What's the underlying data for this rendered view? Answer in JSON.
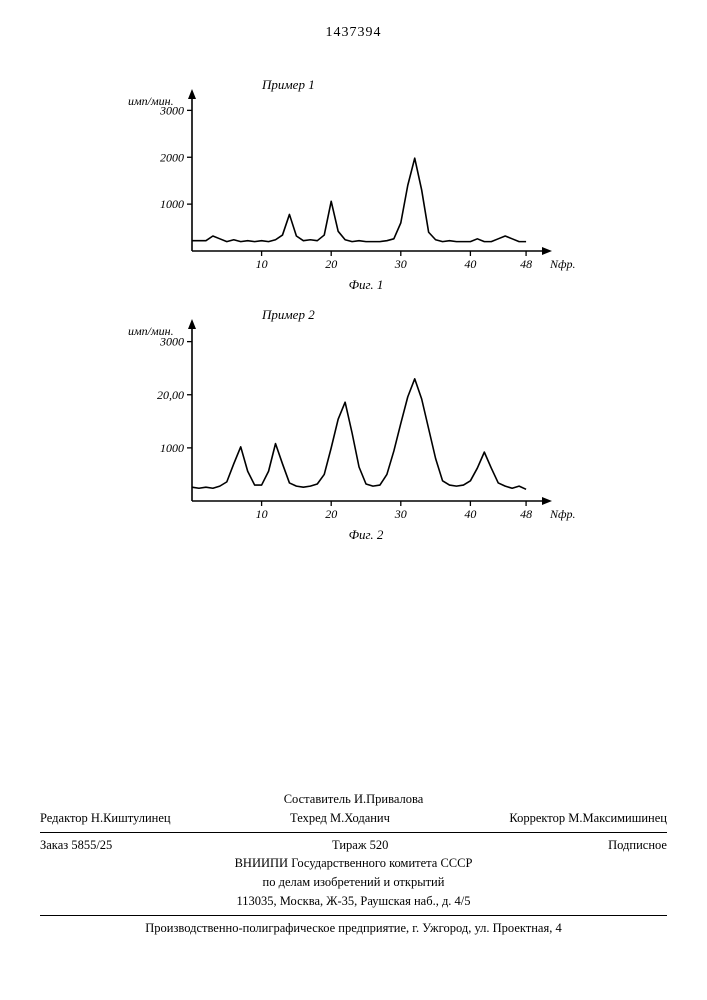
{
  "page_number": "1437394",
  "chart1": {
    "type": "line",
    "title": "Пример 1",
    "ylabel": "имп/мин.",
    "xlabel": "Nфр.",
    "caption": "Фиг. 1",
    "ylim": [
      0,
      3200
    ],
    "yticks": [
      1000,
      2000,
      3000
    ],
    "xlim": [
      0,
      50
    ],
    "xticks": [
      10,
      20,
      30,
      40,
      48
    ],
    "title_fontsize": 13,
    "label_fontsize": 12,
    "axis_color": "#000000",
    "line_color": "#000000",
    "line_width": 1.6,
    "background": "#ffffff",
    "data": [
      [
        0,
        220
      ],
      [
        2,
        220
      ],
      [
        3,
        320
      ],
      [
        4,
        260
      ],
      [
        5,
        200
      ],
      [
        6,
        240
      ],
      [
        7,
        200
      ],
      [
        8,
        220
      ],
      [
        9,
        200
      ],
      [
        10,
        220
      ],
      [
        11,
        200
      ],
      [
        12,
        240
      ],
      [
        13,
        340
      ],
      [
        14,
        780
      ],
      [
        15,
        320
      ],
      [
        16,
        220
      ],
      [
        17,
        240
      ],
      [
        18,
        220
      ],
      [
        19,
        340
      ],
      [
        20,
        1060
      ],
      [
        21,
        420
      ],
      [
        22,
        240
      ],
      [
        23,
        200
      ],
      [
        24,
        220
      ],
      [
        25,
        200
      ],
      [
        26,
        200
      ],
      [
        27,
        200
      ],
      [
        28,
        220
      ],
      [
        29,
        260
      ],
      [
        30,
        600
      ],
      [
        31,
        1400
      ],
      [
        32,
        1980
      ],
      [
        33,
        1300
      ],
      [
        34,
        400
      ],
      [
        35,
        240
      ],
      [
        36,
        200
      ],
      [
        37,
        220
      ],
      [
        38,
        200
      ],
      [
        39,
        200
      ],
      [
        40,
        200
      ],
      [
        41,
        260
      ],
      [
        42,
        200
      ],
      [
        43,
        200
      ],
      [
        44,
        260
      ],
      [
        45,
        320
      ],
      [
        46,
        260
      ],
      [
        47,
        200
      ],
      [
        48,
        200
      ]
    ]
  },
  "chart2": {
    "type": "line",
    "title": "Пример 2",
    "ylabel": "имп/мин.",
    "xlabel": "Nфр.",
    "caption": "Фиг. 2",
    "ylim": [
      0,
      3200
    ],
    "yticks": [
      1000,
      2000,
      3000
    ],
    "xlim": [
      0,
      50
    ],
    "xticks": [
      10,
      20,
      30,
      40,
      48
    ],
    "title_fontsize": 13,
    "label_fontsize": 12,
    "axis_color": "#000000",
    "line_color": "#000000",
    "line_width": 1.6,
    "background": "#ffffff",
    "y2000_label": "20,00",
    "data": [
      [
        0,
        260
      ],
      [
        1,
        240
      ],
      [
        2,
        260
      ],
      [
        3,
        240
      ],
      [
        4,
        280
      ],
      [
        5,
        360
      ],
      [
        6,
        700
      ],
      [
        7,
        1020
      ],
      [
        8,
        560
      ],
      [
        9,
        300
      ],
      [
        10,
        300
      ],
      [
        11,
        560
      ],
      [
        12,
        1080
      ],
      [
        13,
        700
      ],
      [
        14,
        340
      ],
      [
        15,
        280
      ],
      [
        16,
        260
      ],
      [
        17,
        280
      ],
      [
        18,
        320
      ],
      [
        19,
        500
      ],
      [
        20,
        1000
      ],
      [
        21,
        1540
      ],
      [
        22,
        1860
      ],
      [
        23,
        1280
      ],
      [
        24,
        640
      ],
      [
        25,
        320
      ],
      [
        26,
        280
      ],
      [
        27,
        300
      ],
      [
        28,
        500
      ],
      [
        29,
        940
      ],
      [
        30,
        1460
      ],
      [
        31,
        1960
      ],
      [
        32,
        2300
      ],
      [
        33,
        1920
      ],
      [
        34,
        1360
      ],
      [
        35,
        800
      ],
      [
        36,
        380
      ],
      [
        37,
        300
      ],
      [
        38,
        280
      ],
      [
        39,
        300
      ],
      [
        40,
        380
      ],
      [
        41,
        620
      ],
      [
        42,
        920
      ],
      [
        43,
        620
      ],
      [
        44,
        340
      ],
      [
        45,
        280
      ],
      [
        46,
        240
      ],
      [
        47,
        280
      ],
      [
        48,
        220
      ]
    ]
  },
  "footer": {
    "compiler_lbl": "Составитель",
    "compiler": "И.Привалова",
    "editor_lbl": "Редактор",
    "editor": "Н.Киштулинец",
    "tech_lbl": "Техред",
    "tech": "М.Ходанич",
    "corrector_lbl": "Корректор",
    "corrector": "М.Максимишинец",
    "order_lbl": "Заказ",
    "order": "5855/25",
    "tirazh_lbl": "Тираж",
    "tirazh": "520",
    "sign": "Подписное",
    "org1": "ВНИИПИ Государственного комитета СССР",
    "org2": "по делам изобретений и открытий",
    "addr": "113035, Москва, Ж-35, Раушская наб., д. 4/5",
    "printer": "Производственно-полиграфическое предприятие, г. Ужгород, ул. Проектная, 4"
  }
}
